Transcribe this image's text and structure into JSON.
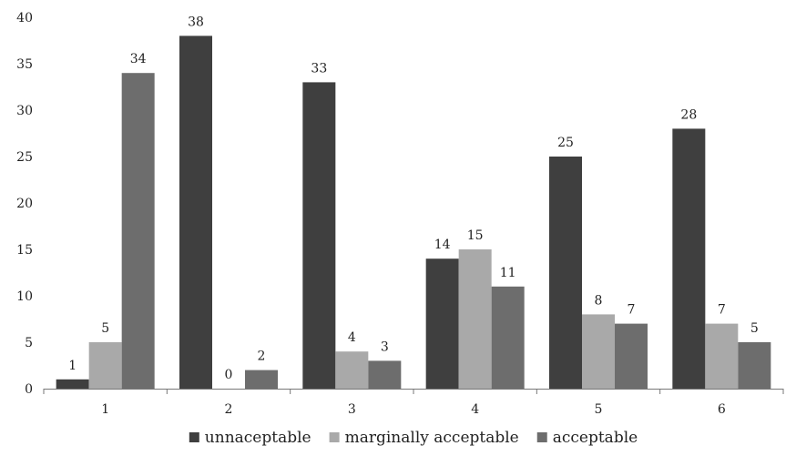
{
  "chart_data": {
    "type": "bar",
    "categories": [
      "1",
      "2",
      "3",
      "4",
      "5",
      "6"
    ],
    "series": [
      {
        "name": "unnaceptable",
        "values": [
          1,
          38,
          33,
          14,
          25,
          28
        ],
        "color": "#3f3f3f"
      },
      {
        "name": "marginally acceptable",
        "values": [
          5,
          0,
          4,
          15,
          8,
          7
        ],
        "color": "#a9a9a9"
      },
      {
        "name": "acceptable",
        "values": [
          34,
          2,
          3,
          11,
          7,
          5
        ],
        "color": "#6d6d6d"
      }
    ],
    "ylim": [
      0,
      40
    ],
    "yticks": [
      0,
      5,
      10,
      15,
      20,
      25,
      30,
      35,
      40
    ],
    "grid": false,
    "legend_position": "bottom-center",
    "data_labels": true
  }
}
